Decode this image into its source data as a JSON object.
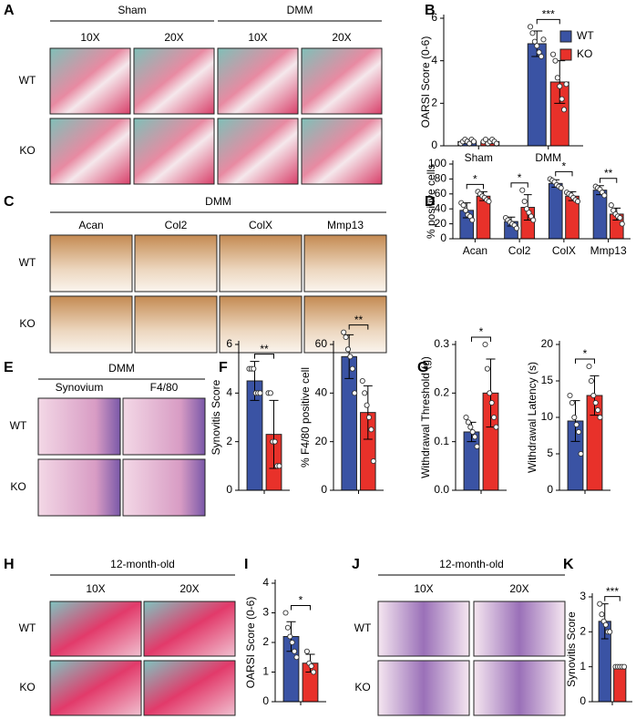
{
  "figure": {
    "panel_letters": [
      "A",
      "B",
      "C",
      "D",
      "E",
      "F",
      "G",
      "H",
      "I",
      "J",
      "K"
    ],
    "image_panels": [
      {
        "groups": [
          "Sham",
          "DMM"
        ],
        "columns": [
          "10X",
          "20X",
          "10X",
          "20X"
        ],
        "rows": [
          "WT",
          "KO"
        ]
      },
      {
        "groups": [
          "DMM"
        ],
        "columns": [
          "Acan",
          "Col2",
          "ColX",
          "Mmp13"
        ],
        "rows": [
          "WT",
          "KO"
        ]
      },
      {
        "groups": [
          "DMM"
        ],
        "columns": [
          "Synovium",
          "F4/80"
        ],
        "rows": [
          "WT",
          "KO"
        ]
      },
      {
        "groups": [
          "12-month-old"
        ],
        "columns": [
          "10X",
          "20X"
        ],
        "rows": [
          "WT",
          "KO"
        ]
      },
      {
        "groups": [
          "12-month-old"
        ],
        "columns": [
          "10X",
          "20X"
        ],
        "rows": [
          "WT",
          "KO"
        ]
      }
    ]
  },
  "chart_data": [
    {
      "type": "bar",
      "ylabel": "OARSI Score (0-6)",
      "categories": [
        "Sham",
        "DMM"
      ],
      "legend": "upper right",
      "ylim": [
        0,
        6
      ],
      "yticks": [
        0,
        2,
        4,
        6
      ],
      "annotations": [
        null,
        "***"
      ],
      "series": [
        {
          "name": "WT",
          "color": "#3a53a4",
          "values": [
            0.2,
            4.8
          ],
          "errors": [
            0.1,
            0.6
          ],
          "points": [
            [
              0.1,
              0.2,
              0.3,
              0.2,
              0.1,
              0.3,
              0.2
            ],
            [
              5.6,
              5.3,
              4.9,
              4.7,
              4.4,
              4.2,
              5.0
            ]
          ]
        },
        {
          "name": "KO",
          "color": "#e8312a",
          "values": [
            0.2,
            3.0
          ],
          "errors": [
            0.1,
            1.0
          ],
          "points": [
            [
              0.2,
              0.3,
              0.1,
              0.2,
              0.3,
              0.2,
              0.1
            ],
            [
              4.3,
              4.0,
              3.2,
              2.8,
              2.2,
              1.7,
              2.9
            ]
          ]
        }
      ]
    },
    {
      "type": "bar",
      "ylabel": "% positive cells",
      "categories": [
        "Acan",
        "Col2",
        "ColX",
        "Mmp13"
      ],
      "ylim": [
        0,
        100
      ],
      "yticks": [
        0,
        20,
        40,
        60,
        80,
        100
      ],
      "annotations": [
        "*",
        "*",
        "*",
        "**"
      ],
      "series": [
        {
          "color": "#3a53a4",
          "values": [
            38,
            23,
            74,
            65
          ],
          "errors": [
            10,
            6,
            5,
            6
          ],
          "points": [
            [
              48,
              45,
              38,
              32,
              30,
              25
            ],
            [
              28,
              25,
              22,
              20,
              18,
              14
            ],
            [
              80,
              78,
              76,
              72,
              70,
              68
            ],
            [
              70,
              68,
              66,
              62,
              58
            ]
          ]
        },
        {
          "color": "#e8312a",
          "values": [
            57,
            42,
            57,
            33
          ],
          "errors": [
            6,
            17,
            6,
            8
          ],
          "points": [
            [
              63,
              60,
              57,
              55,
              52,
              50
            ],
            [
              65,
              50,
              40,
              35,
              30,
              25
            ],
            [
              62,
              60,
              58,
              55,
              52,
              50
            ],
            [
              45,
              38,
              33,
              30,
              28,
              20
            ]
          ]
        }
      ]
    },
    {
      "type": "bar",
      "ylabel": "Synovitis Score",
      "ylim": [
        0,
        6
      ],
      "yticks": [
        0,
        2,
        4,
        6
      ],
      "annotations": [
        "**"
      ],
      "series": [
        {
          "color": "#3a53a4",
          "values": [
            4.5
          ],
          "errors": [
            0.8
          ],
          "points": [
            [
              5,
              5,
              5,
              4,
              4,
              4
            ]
          ]
        },
        {
          "color": "#e8312a",
          "values": [
            2.3
          ],
          "errors": [
            1.4
          ],
          "points": [
            [
              4,
              4,
              2,
              2,
              1,
              1
            ]
          ]
        }
      ]
    },
    {
      "type": "bar",
      "ylabel": "% F4/80 positive cell",
      "ylim": [
        0,
        60
      ],
      "yticks": [
        0,
        20,
        40,
        60
      ],
      "annotations": [
        "**"
      ],
      "series": [
        {
          "color": "#3a53a4",
          "values": [
            55
          ],
          "errors": [
            9
          ],
          "points": [
            [
              65,
              63,
              58,
              55,
              50,
              40
            ]
          ]
        },
        {
          "color": "#e8312a",
          "values": [
            32
          ],
          "errors": [
            11
          ],
          "points": [
            [
              45,
              40,
              35,
              30,
              25,
              12
            ]
          ]
        }
      ]
    },
    {
      "type": "bar",
      "ylabel": "Withdrawal Threshold (g)",
      "ylim": [
        0,
        0.3
      ],
      "yticks": [
        {
          "value": 0,
          "label": "0.0"
        },
        0.1,
        0.2,
        0.3
      ],
      "annotations": [
        "*"
      ],
      "series": [
        {
          "color": "#3a53a4",
          "values": [
            0.12
          ],
          "errors": [
            0.02
          ],
          "points": [
            [
              0.15,
              0.14,
              0.13,
              0.12,
              0.11,
              0.09
            ]
          ]
        },
        {
          "color": "#e8312a",
          "values": [
            0.2
          ],
          "errors": [
            0.07
          ],
          "points": [
            [
              0.3,
              0.25,
              0.2,
              0.18,
              0.15,
              0.13
            ]
          ]
        }
      ]
    },
    {
      "type": "bar",
      "ylabel": "Withdrawal Latency (s)",
      "ylim": [
        0,
        20
      ],
      "yticks": [
        0,
        5,
        10,
        15,
        20
      ],
      "annotations": [
        "*"
      ],
      "series": [
        {
          "color": "#3a53a4",
          "values": [
            9.5
          ],
          "errors": [
            2.8
          ],
          "points": [
            [
              13,
              12,
              10,
              9,
              8,
              5
            ]
          ]
        },
        {
          "color": "#e8312a",
          "values": [
            13
          ],
          "errors": [
            2.7
          ],
          "points": [
            [
              17,
              15,
              13,
              12,
              11,
              10
            ]
          ]
        }
      ]
    },
    {
      "type": "bar",
      "ylabel": "OARSI Score (0-6)",
      "ylim": [
        0,
        4
      ],
      "yticks": [
        0,
        1,
        2,
        3,
        4
      ],
      "annotations": [
        "*"
      ],
      "series": [
        {
          "color": "#3a53a4",
          "values": [
            2.2
          ],
          "errors": [
            0.5
          ],
          "points": [
            [
              3,
              2.5,
              2.2,
              2,
              1.7,
              1.5
            ]
          ]
        },
        {
          "color": "#e8312a",
          "values": [
            1.3
          ],
          "errors": [
            0.3
          ],
          "points": [
            [
              1.7,
              1.3,
              1.2,
              1.0
            ]
          ]
        }
      ]
    },
    {
      "type": "bar",
      "ylabel": "Synovitis Score",
      "ylim": [
        0,
        3
      ],
      "yticks": [
        0,
        1,
        2,
        3
      ],
      "annotations": [
        "***"
      ],
      "series": [
        {
          "color": "#3a53a4",
          "values": [
            2.3
          ],
          "errors": [
            0.5
          ],
          "points": [
            [
              2.8,
              2.5,
              2.3,
              2.2,
              2.0,
              2.0
            ]
          ]
        },
        {
          "color": "#e8312a",
          "values": [
            1.0
          ],
          "errors": [
            0
          ],
          "points": [
            [
              1,
              1,
              1,
              1,
              1
            ]
          ]
        }
      ]
    }
  ]
}
